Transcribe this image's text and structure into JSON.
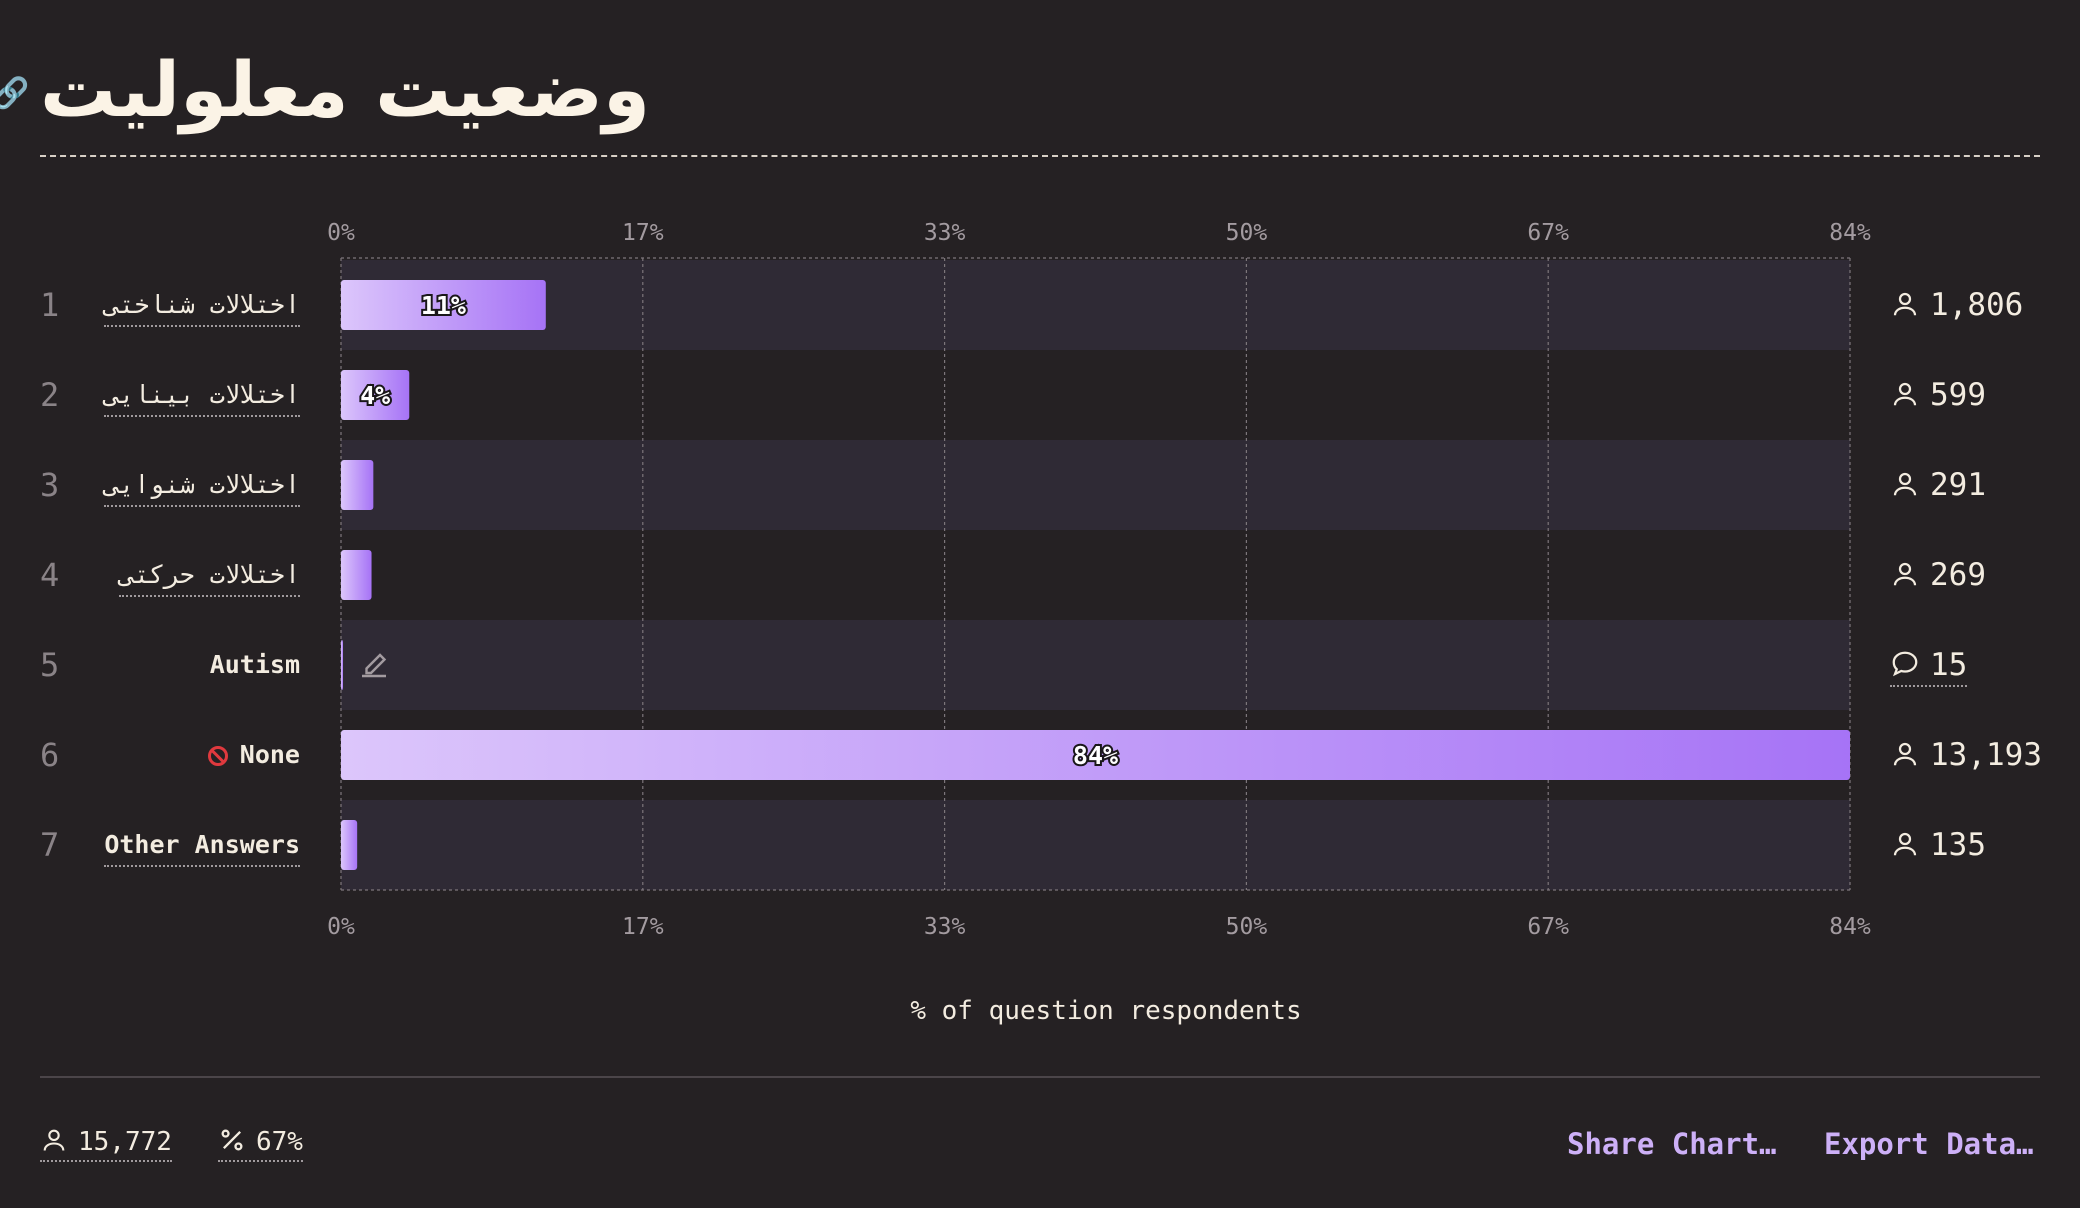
{
  "title": "وضعیت معلولیت",
  "chart_data": {
    "type": "bar",
    "orientation": "horizontal",
    "title": "وضعیت معلولیت",
    "xlabel": "% of question respondents",
    "xlim": [
      0,
      84
    ],
    "x_ticks": [
      "0%",
      "17%",
      "33%",
      "50%",
      "67%",
      "84%"
    ],
    "x_tick_values": [
      0,
      16.8,
      33.6,
      50.4,
      67.2,
      84
    ],
    "grid": true,
    "categories": [
      "اختلالات شناختی",
      "اختلالات بینایی",
      "اختلالات شنوایی",
      "اختلالات حرکتی",
      "Autism",
      "None",
      "Other Answers"
    ],
    "ranks": [
      "1",
      "2",
      "3",
      "4",
      "5",
      "6",
      "7"
    ],
    "values": [
      11.4,
      3.8,
      1.8,
      1.7,
      0.1,
      84,
      0.9
    ],
    "bar_labels": [
      "11%",
      "4%",
      "",
      "",
      "",
      "84%",
      ""
    ],
    "counts": [
      "1,806",
      "599",
      "291",
      "269",
      "15",
      "13,193",
      "135"
    ],
    "count_types": [
      "respondents",
      "respondents",
      "respondents",
      "respondents",
      "comments",
      "respondents",
      "respondents"
    ]
  },
  "footer": {
    "total_respondents": "15,772",
    "response_rate": "67%",
    "share_label": "Share Chart…",
    "export_label": "Export Data…"
  },
  "colors": {
    "background": "#252123",
    "bar_start": "#dcc6fb",
    "bar_end": "#a673f6",
    "row_band": "#2f2a35",
    "accent": "#cdb0f7",
    "none_icon": "#e0393e"
  }
}
